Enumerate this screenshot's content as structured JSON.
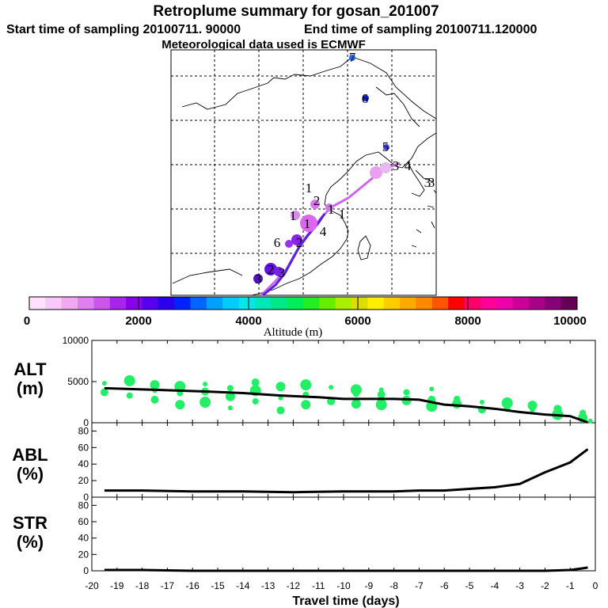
{
  "header": {
    "title": "Retroplume summary for gosan_201007",
    "start_label": "Start time of sampling 20100711. 90000",
    "end_label": "End time of sampling 20100711.120000",
    "met_label": "Meteorological data used is ECMWF"
  },
  "colors": {
    "scatter_green": "#22ee66",
    "line": "#000000",
    "palette": [
      "#ffe0ff",
      "#f8c8f8",
      "#f0a8f0",
      "#e080f0",
      "#cc55ee",
      "#aa22ee",
      "#8800ee",
      "#5500ee",
      "#2a00ee",
      "#0022ff",
      "#0066ff",
      "#00a0ff",
      "#00ccff",
      "#00e8e8",
      "#00e8b8",
      "#00e888",
      "#00ee55",
      "#22ee22",
      "#66ee00",
      "#aaee00",
      "#dddd00",
      "#ffee00",
      "#ffcc00",
      "#ffaa00",
      "#ff8800",
      "#ff5500",
      "#ff0000",
      "#ff0066",
      "#ff0099",
      "#ee00aa",
      "#cc0099",
      "#aa0088",
      "#880077",
      "#660055"
    ]
  },
  "map": {
    "trajectory_labels": [
      {
        "text": "7",
        "color": "#2266ee"
      },
      {
        "text": "6",
        "color": "#1122cc"
      },
      {
        "text": "5",
        "color": "#4444dd"
      },
      {
        "text": "4",
        "color": "#000000"
      },
      {
        "text": "1",
        "color": "#000000"
      },
      {
        "text": "2",
        "color": "#000000"
      },
      {
        "text": "3",
        "color": "#000000"
      }
    ]
  },
  "colorbar": {
    "ticks": [
      "0",
      "2000",
      "4000",
      "6000",
      "8000",
      "10000"
    ],
    "title": "Altitude (m)"
  },
  "chart_data": [
    {
      "type": "scatter",
      "panel": "ALT",
      "ylabel": "ALT\n(m)",
      "ylabel_line1": "ALT",
      "ylabel_line2": "(m)",
      "ylim": [
        0,
        10000
      ],
      "yticks": [
        "0",
        "5000",
        "10000"
      ],
      "xlim": [
        -20,
        0
      ],
      "median_line": {
        "x": [
          -19.5,
          -17.5,
          -15.5,
          -14,
          -12.5,
          -11,
          -10,
          -8,
          -7,
          -6,
          -5,
          -4,
          -3,
          -2,
          -1,
          -0.3
        ],
        "y": [
          4200,
          4000,
          3800,
          3600,
          3300,
          3100,
          2900,
          2900,
          2800,
          2200,
          2000,
          1700,
          1300,
          1000,
          800,
          50
        ]
      },
      "points": [
        {
          "x": -19.5,
          "y": 4800
        },
        {
          "x": -19.5,
          "y": 3700
        },
        {
          "x": -18.5,
          "y": 5100
        },
        {
          "x": -18.5,
          "y": 3300
        },
        {
          "x": -17.5,
          "y": 4600
        },
        {
          "x": -17.5,
          "y": 3900
        },
        {
          "x": -17.5,
          "y": 2800
        },
        {
          "x": -16.5,
          "y": 4400
        },
        {
          "x": -16.5,
          "y": 3600
        },
        {
          "x": -16.5,
          "y": 2200
        },
        {
          "x": -15.5,
          "y": 4700
        },
        {
          "x": -15.5,
          "y": 3800
        },
        {
          "x": -15.5,
          "y": 2500
        },
        {
          "x": -14.5,
          "y": 4200
        },
        {
          "x": -14.5,
          "y": 3200
        },
        {
          "x": -14.5,
          "y": 1800
        },
        {
          "x": -13.5,
          "y": 4900
        },
        {
          "x": -13.5,
          "y": 3900
        },
        {
          "x": -13.5,
          "y": 2600
        },
        {
          "x": -12.5,
          "y": 4400
        },
        {
          "x": -12.5,
          "y": 3000
        },
        {
          "x": -12.5,
          "y": 1500
        },
        {
          "x": -11.5,
          "y": 4600
        },
        {
          "x": -11.5,
          "y": 3400
        },
        {
          "x": -11.5,
          "y": 2200
        },
        {
          "x": -10.5,
          "y": 4300
        },
        {
          "x": -10.5,
          "y": 2600
        },
        {
          "x": -9.5,
          "y": 4000
        },
        {
          "x": -9.5,
          "y": 3500
        },
        {
          "x": -9.5,
          "y": 2300
        },
        {
          "x": -8.5,
          "y": 4000
        },
        {
          "x": -8.5,
          "y": 3400
        },
        {
          "x": -8.5,
          "y": 2200
        },
        {
          "x": -7.5,
          "y": 3700
        },
        {
          "x": -7.5,
          "y": 2700
        },
        {
          "x": -6.5,
          "y": 4100
        },
        {
          "x": -6.5,
          "y": 2800
        },
        {
          "x": -6.5,
          "y": 2000
        },
        {
          "x": -5.5,
          "y": 2900
        },
        {
          "x": -5.5,
          "y": 2300
        },
        {
          "x": -4.5,
          "y": 2500
        },
        {
          "x": -4.5,
          "y": 1600
        },
        {
          "x": -3.5,
          "y": 2400
        },
        {
          "x": -3.5,
          "y": 1700
        },
        {
          "x": -2.5,
          "y": 2100
        },
        {
          "x": -2.5,
          "y": 1500
        },
        {
          "x": -1.5,
          "y": 1700
        },
        {
          "x": -1.5,
          "y": 1000
        },
        {
          "x": -0.5,
          "y": 1200
        },
        {
          "x": -0.5,
          "y": 600
        },
        {
          "x": -0.2,
          "y": 200
        }
      ]
    },
    {
      "type": "line",
      "panel": "ABL",
      "ylabel_line1": "ABL",
      "ylabel_line2": "(%)",
      "ylim": [
        0,
        90
      ],
      "yticks": [
        "0",
        "20",
        "40",
        "60",
        "80"
      ],
      "xlim": [
        -20,
        0
      ],
      "x": [
        -19.5,
        -18,
        -16,
        -14,
        -12,
        -10,
        -8,
        -7,
        -6,
        -5,
        -4,
        -3,
        -2,
        -1,
        -0.3
      ],
      "y": [
        8,
        8,
        7,
        7,
        6,
        7,
        7,
        8,
        8,
        10,
        12,
        16,
        30,
        42,
        58
      ]
    },
    {
      "type": "line",
      "panel": "STR",
      "ylabel_line1": "STR",
      "ylabel_line2": "(%)",
      "ylim": [
        0,
        90
      ],
      "yticks": [
        "0",
        "20",
        "40",
        "60",
        "80"
      ],
      "xlim": [
        -20,
        0
      ],
      "x": [
        -19.5,
        -18,
        -16,
        -14,
        -12,
        -10,
        -8,
        -6,
        -4,
        -2,
        -1,
        -0.5,
        -0.3
      ],
      "y": [
        1,
        1,
        0,
        0,
        0,
        0,
        0,
        0,
        0,
        0,
        1,
        3,
        4
      ]
    }
  ],
  "xaxis": {
    "ticks": [
      "-20",
      "-19",
      "-18",
      "-17",
      "-16",
      "-15",
      "-14",
      "-13",
      "-12",
      "-11",
      "-10",
      "-9",
      "-8",
      "-7",
      "-6",
      "-5",
      "-4",
      "-3",
      "-2",
      "-1",
      "0"
    ],
    "title": "Travel time (days)"
  }
}
